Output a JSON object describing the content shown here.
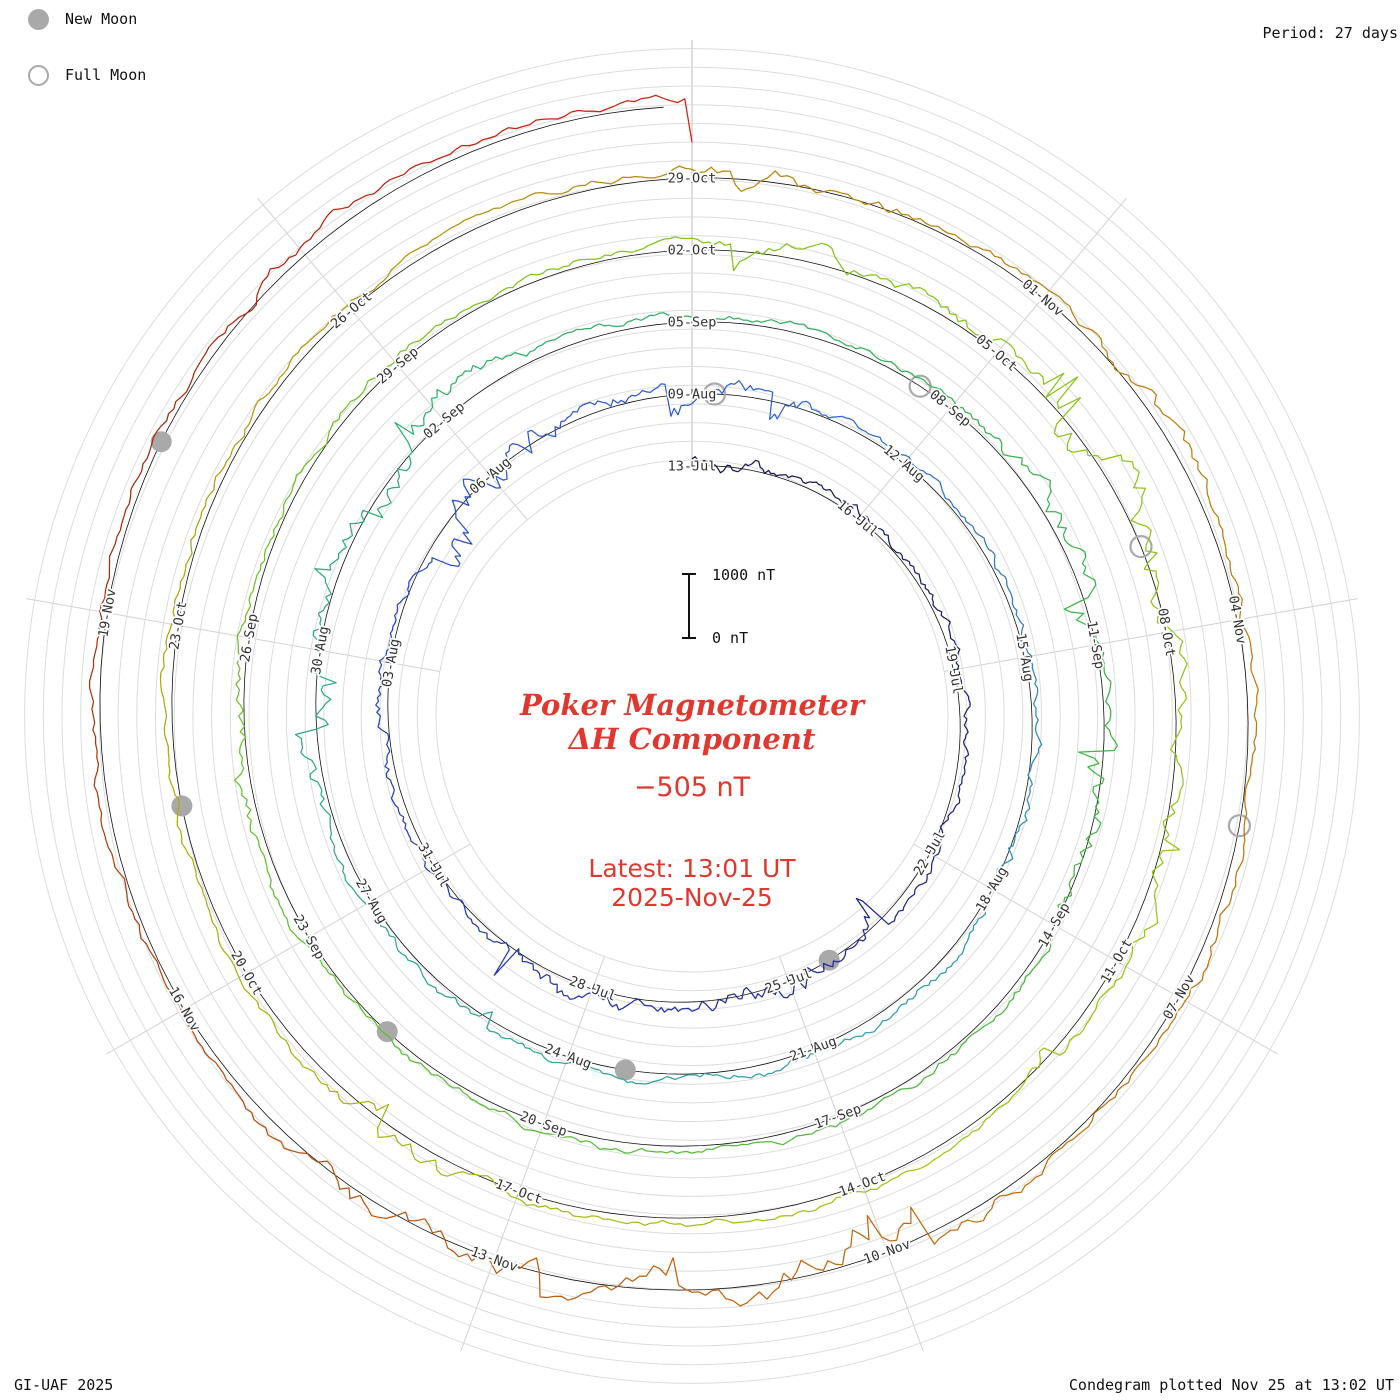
{
  "meta": {
    "period_label": "Period: 27 days",
    "credit": "GI-UAF 2025",
    "plotted_label": "Condegram plotted Nov 25 at 13:02 UT"
  },
  "legend": {
    "new_moon_label": "New Moon",
    "full_moon_label": "Full Moon"
  },
  "center": {
    "title_line1": "Poker Magnetometer",
    "title_line2": "ΔH Component",
    "current_value_label": "−505 nT",
    "latest_line1": "Latest: 13:01 UT",
    "latest_line2": "2025-Nov-25"
  },
  "scale": {
    "top_label": "1000 nT",
    "bottom_label": "0 nT"
  },
  "colors": {
    "grid": "#dcdcdc",
    "grid_radial": "#d2d2d2",
    "grid_boundary": "#bdbdbd",
    "baseline": "#111111",
    "label_text": "#333333",
    "moon_gray": "#a9a9a9",
    "accent_red": "#e0382e",
    "annotation": "#111111"
  },
  "chart_data": {
    "type": "line",
    "projection": "polar-spiral-condegram",
    "title": "Poker Magnetometer ΔH Component",
    "station": "Poker",
    "component": "ΔH",
    "current_nT": -505,
    "period_days": 27,
    "total_days": 135,
    "start_date": "2025-07-13",
    "end_date": "2025-11-25",
    "scale_nT_per_turn": 1000,
    "grid": "concentric circles every ~250 nT, radial lines every 40 deg",
    "rings": [
      {
        "index": 1,
        "start_label": "13-Jul",
        "color_range": "dark navy"
      },
      {
        "index": 2,
        "start_label": "09-Aug",
        "color_range": "blue to teal"
      },
      {
        "index": 3,
        "start_label": "05-Sep",
        "color_range": "teal to green"
      },
      {
        "index": 4,
        "start_label": "02-Oct",
        "color_range": "yellow-green to olive"
      },
      {
        "index": 5,
        "start_label": "29-Oct",
        "color_range": "goldenrod to orange to red"
      }
    ],
    "tick_labels": [
      {
        "day": 0,
        "label": "13-Jul"
      },
      {
        "day": 3,
        "label": "16-Jul"
      },
      {
        "day": 6,
        "label": "19-Jul"
      },
      {
        "day": 9,
        "label": "22-Jul"
      },
      {
        "day": 12,
        "label": "25-Jul"
      },
      {
        "day": 15,
        "label": "28-Jul"
      },
      {
        "day": 18,
        "label": "31-Jul"
      },
      {
        "day": 21,
        "label": "03-Aug"
      },
      {
        "day": 24,
        "label": "06-Aug"
      },
      {
        "day": 27,
        "label": "09-Aug"
      },
      {
        "day": 30,
        "label": "12-Aug"
      },
      {
        "day": 33,
        "label": "15-Aug"
      },
      {
        "day": 36,
        "label": "18-Aug"
      },
      {
        "day": 39,
        "label": "21-Aug"
      },
      {
        "day": 42,
        "label": "24-Aug"
      },
      {
        "day": 45,
        "label": "27-Aug"
      },
      {
        "day": 48,
        "label": "30-Aug"
      },
      {
        "day": 51,
        "label": "02-Sep"
      },
      {
        "day": 54,
        "label": "05-Sep"
      },
      {
        "day": 57,
        "label": "08-Sep"
      },
      {
        "day": 60,
        "label": "11-Sep"
      },
      {
        "day": 63,
        "label": "14-Sep"
      },
      {
        "day": 66,
        "label": "17-Sep"
      },
      {
        "day": 69,
        "label": "20-Sep"
      },
      {
        "day": 72,
        "label": "23-Sep"
      },
      {
        "day": 75,
        "label": "26-Sep"
      },
      {
        "day": 78,
        "label": "29-Sep"
      },
      {
        "day": 81,
        "label": "02-Oct"
      },
      {
        "day": 84,
        "label": "05-Oct"
      },
      {
        "day": 87,
        "label": "08-Oct"
      },
      {
        "day": 90,
        "label": "11-Oct"
      },
      {
        "day": 93,
        "label": "14-Oct"
      },
      {
        "day": 96,
        "label": "17-Oct"
      },
      {
        "day": 99,
        "label": "20-Oct"
      },
      {
        "day": 102,
        "label": "23-Oct"
      },
      {
        "day": 105,
        "label": "26-Oct"
      },
      {
        "day": 108,
        "label": "29-Oct"
      },
      {
        "day": 111,
        "label": "01-Nov"
      },
      {
        "day": 114,
        "label": "04-Nov"
      },
      {
        "day": 117,
        "label": "07-Nov"
      },
      {
        "day": 120,
        "label": "10-Nov"
      },
      {
        "day": 123,
        "label": "13-Nov"
      },
      {
        "day": 126,
        "label": "16-Nov"
      },
      {
        "day": 129,
        "label": "19-Nov"
      }
    ],
    "moon_events": {
      "new_moon_days": [
        {
          "date": "2025-07-24",
          "day": 11.3
        },
        {
          "date": "2025-08-23",
          "day": 41.3
        },
        {
          "date": "2025-09-21",
          "day": 70.8
        },
        {
          "date": "2025-10-21",
          "day": 100.5
        },
        {
          "date": "2025-11-20",
          "day": 130.3
        }
      ],
      "full_moon_days": [
        {
          "date": "2025-08-09",
          "day": 27.3
        },
        {
          "date": "2025-09-07",
          "day": 56.6
        },
        {
          "date": "2025-10-07",
          "day": 86.2
        },
        {
          "date": "2025-11-05",
          "day": 115.6
        }
      ]
    },
    "palette_stops": [
      [
        0,
        "#16164e"
      ],
      [
        14,
        "#20309f"
      ],
      [
        27,
        "#2f5dd9"
      ],
      [
        38,
        "#2f9fae"
      ],
      [
        51,
        "#2fae6e"
      ],
      [
        58,
        "#37b24d"
      ],
      [
        70,
        "#58bf31"
      ],
      [
        81,
        "#7fc41f"
      ],
      [
        93,
        "#9fc513"
      ],
      [
        101,
        "#afa90e"
      ],
      [
        108,
        "#b8860b"
      ],
      [
        115,
        "#c07a0e"
      ],
      [
        121,
        "#c3650f"
      ],
      [
        126,
        "#b34a10"
      ],
      [
        130,
        "#a02a0c"
      ],
      [
        135,
        "#cf1f10"
      ]
    ],
    "trace_synthesis": {
      "seed": 20251125,
      "dt_days": 0.05,
      "quiet_level_nT": 90,
      "max_negative_nT": -950,
      "max_positive_nT": 720,
      "chunk_samples": 8
    }
  }
}
